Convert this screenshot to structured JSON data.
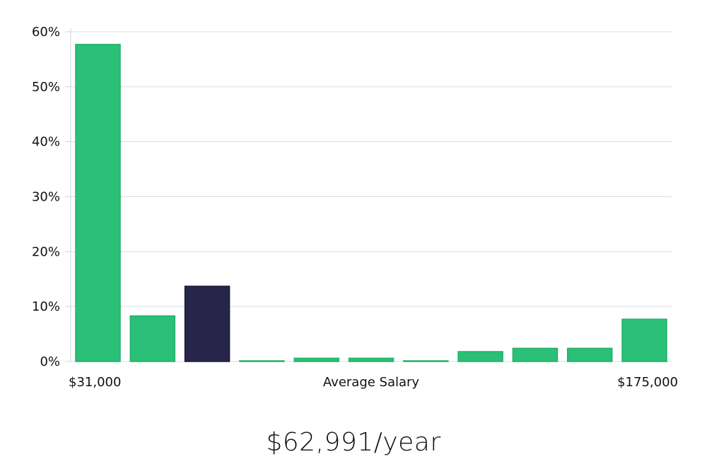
{
  "chart_data": {
    "type": "bar",
    "title": "",
    "xlabel": "Average Salary",
    "ylabel": "",
    "x_range_labels": {
      "min": "$31,000",
      "max": "$175,000"
    },
    "y_ticks": [
      "0%",
      "10%",
      "20%",
      "30%",
      "40%",
      "50%",
      "60%"
    ],
    "ylim": [
      0,
      60
    ],
    "grid": true,
    "values": [
      57.7,
      8.3,
      13.7,
      0.1,
      0.6,
      0.6,
      0.1,
      1.8,
      2.4,
      2.4,
      7.7
    ],
    "highlight_index": 2,
    "colors": {
      "bar": "#2bbf77",
      "highlight": "#27264a",
      "grid": "#d9dde3",
      "axis": "#cfd3d8"
    }
  },
  "summary": {
    "average_salary": "$62,991/year"
  }
}
